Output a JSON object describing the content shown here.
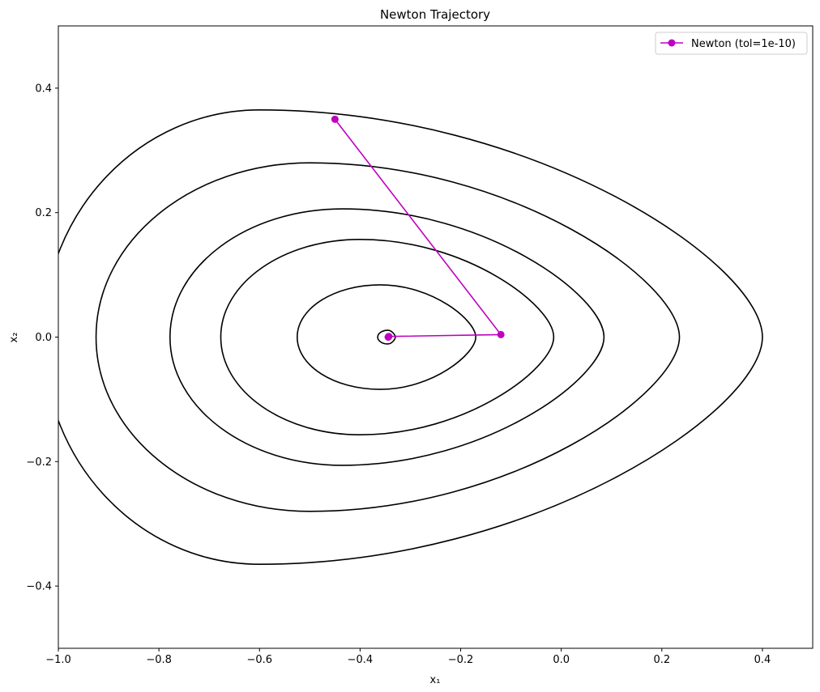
{
  "chart_data": {
    "type": "line",
    "title": "Newton Trajectory",
    "xlabel": "x₁",
    "ylabel": "x₂",
    "xlim": [
      -1.0,
      0.5
    ],
    "ylim": [
      -0.5,
      0.5
    ],
    "grid": false,
    "legend_position": "top-right",
    "x_ticks": [
      {
        "value": -1.0,
        "label": "−1.0"
      },
      {
        "value": -0.8,
        "label": "−0.8"
      },
      {
        "value": -0.6,
        "label": "−0.6"
      },
      {
        "value": -0.4,
        "label": "−0.4"
      },
      {
        "value": -0.2,
        "label": "−0.2"
      },
      {
        "value": 0.0,
        "label": "0.0"
      },
      {
        "value": 0.2,
        "label": "0.2"
      },
      {
        "value": 0.4,
        "label": "0.4"
      }
    ],
    "y_ticks": [
      {
        "value": -0.4,
        "label": "−0.4"
      },
      {
        "value": -0.2,
        "label": "−0.2"
      },
      {
        "value": 0.0,
        "label": "0.0"
      },
      {
        "value": 0.2,
        "label": "0.2"
      },
      {
        "value": 0.4,
        "label": "0.4"
      }
    ],
    "contours": {
      "color": "#000000",
      "ovals": [
        {
          "left": -0.365,
          "right": -0.33,
          "top_x": -0.345,
          "top_y": 0.011
        },
        {
          "left": -0.525,
          "right": -0.17,
          "top_x": -0.36,
          "top_y": 0.084
        },
        {
          "left": -0.677,
          "right": -0.015,
          "top_x": -0.4,
          "top_y": 0.157
        },
        {
          "left": -0.778,
          "right": 0.085,
          "top_x": -0.435,
          "top_y": 0.206
        },
        {
          "left": -0.925,
          "right": 0.235,
          "top_x": -0.5,
          "top_y": 0.28
        },
        {
          "left": -1.03,
          "right": 0.4,
          "top_x": -0.6,
          "top_y": 0.365
        }
      ]
    },
    "series": [
      {
        "name": "Newton (tol=1e-10)",
        "color": "#bf00bf",
        "x": [
          -0.45,
          -0.12,
          -0.343,
          -0.344,
          -0.344
        ],
        "y": [
          0.35,
          0.004,
          0.001,
          0.0,
          0.0
        ]
      }
    ]
  }
}
